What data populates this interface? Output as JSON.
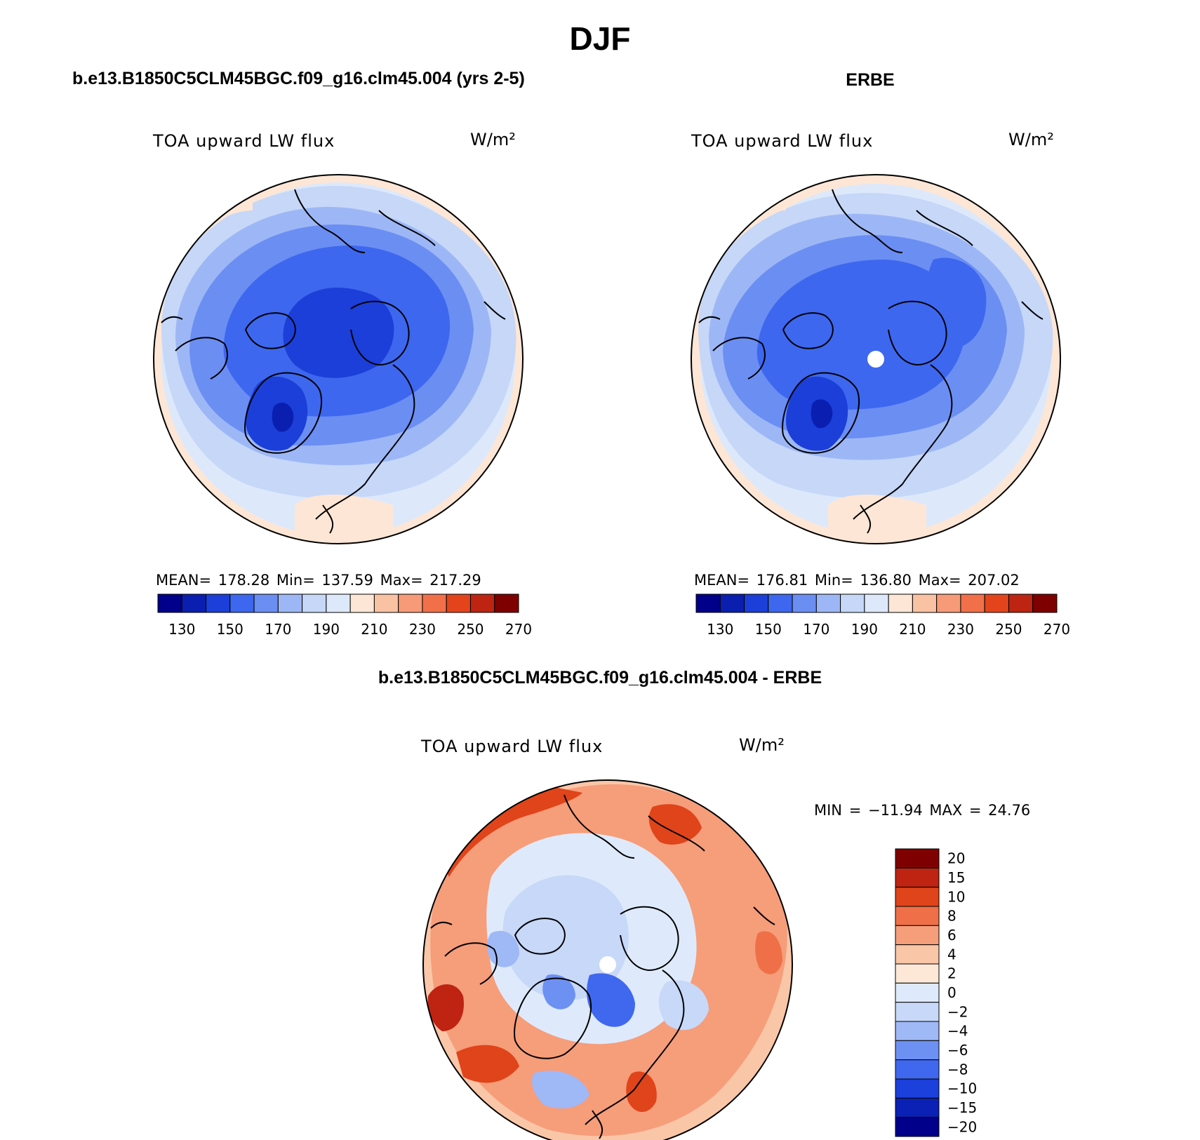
{
  "figure": {
    "title": "DJF",
    "colors": {
      "outline": "#000000",
      "background": "#ffffff",
      "mask": "#ffffff"
    },
    "abs_colors": [
      "#00008a",
      "#0a1fb0",
      "#1b3fd8",
      "#3d67ee",
      "#6b8ef3",
      "#9db7f6",
      "#c6d7f8",
      "#dde9fb",
      "#fde6d5",
      "#f9c2a2",
      "#f79a77",
      "#f1704a",
      "#e3441c",
      "#bd2412",
      "#7f0000"
    ],
    "diff_colors": [
      "#00008a",
      "#0b20b5",
      "#1c40dc",
      "#3f68ee",
      "#6d90f3",
      "#9fb8f6",
      "#c7d8f8",
      "#deeafb",
      "#fde8d8",
      "#fac6a8",
      "#f69d7a",
      "#ef7048",
      "#e0441a",
      "#bf2312",
      "#7f0000"
    ]
  },
  "panels": [
    {
      "title": "b.e13.B1850C5CLM45BGC.f09_g16.clm45.004 (yrs 2-5)",
      "variable": "TOA upward LW flux",
      "units": "W/m²",
      "stats": "MEAN= 178.28   Min= 137.59   Max= 217.29",
      "pole_masked": false,
      "colorbar_labels": [
        "130",
        "150",
        "170",
        "190",
        "210",
        "230",
        "250",
        "270"
      ]
    },
    {
      "title": "ERBE",
      "variable": "TOA upward LW flux",
      "units": "W/m²",
      "stats": "MEAN= 176.81   Min= 136.80   Max= 207.02",
      "pole_masked": true,
      "colorbar_labels": [
        "130",
        "150",
        "170",
        "190",
        "210",
        "230",
        "250",
        "270"
      ]
    },
    {
      "title": "b.e13.B1850C5CLM45BGC.f09_g16.clm45.004 - ERBE",
      "variable": "TOA upward LW flux",
      "units": "W/m²",
      "stats": "MIN = −11.94 MAX =  24.76",
      "pole_masked": true,
      "colorbar_labels": [
        "20",
        "15",
        "10",
        "8",
        "6",
        "4",
        "2",
        "0",
        "−2",
        "−4",
        "−6",
        "−8",
        "−10",
        "−15",
        "−20"
      ]
    }
  ]
}
